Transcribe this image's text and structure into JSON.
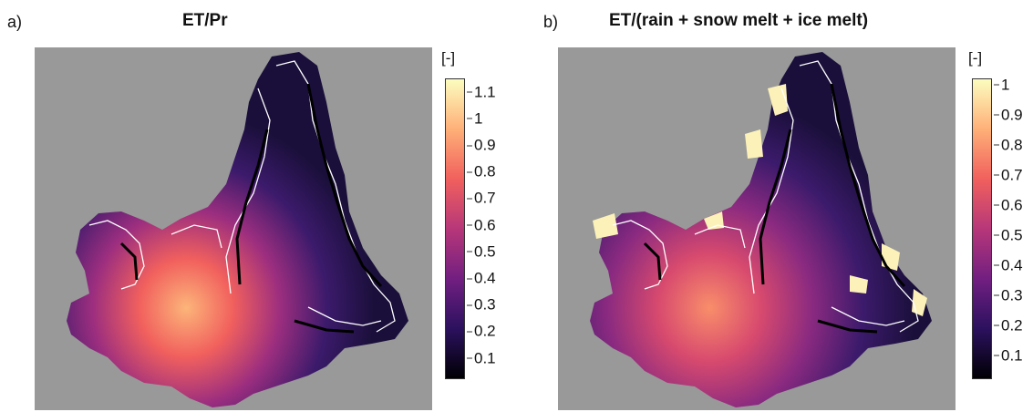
{
  "panels": [
    {
      "label": "a)",
      "title": "ET/Pr",
      "unit": "[-]",
      "ticks": [
        "1.1",
        "1",
        "0.9",
        "0.8",
        "0.7",
        "0.6",
        "0.5",
        "0.4",
        "0.3",
        "0.2",
        "0.1"
      ],
      "tick_values": [
        1.1,
        1.0,
        0.9,
        0.8,
        0.7,
        0.6,
        0.5,
        0.4,
        0.3,
        0.2,
        0.1
      ],
      "scale_range": [
        0.02,
        1.15
      ]
    },
    {
      "label": "b)",
      "title": "ET/(rain + snow melt + ice melt)",
      "unit": "[-]",
      "ticks": [
        "1",
        "0.9",
        "0.8",
        "0.7",
        "0.6",
        "0.5",
        "0.4",
        "0.3",
        "0.2",
        "0.1"
      ],
      "tick_values": [
        1.0,
        0.9,
        0.8,
        0.7,
        0.6,
        0.5,
        0.4,
        0.3,
        0.2,
        0.1
      ],
      "scale_range": [
        0.02,
        1.02
      ]
    }
  ],
  "colors": {
    "background_gray": "#999999",
    "colormap": [
      "#000004",
      "#2c115f",
      "#721f81",
      "#b73779",
      "#f1605d",
      "#feb078",
      "#fcfdbf"
    ],
    "outline": "#ffffff"
  }
}
